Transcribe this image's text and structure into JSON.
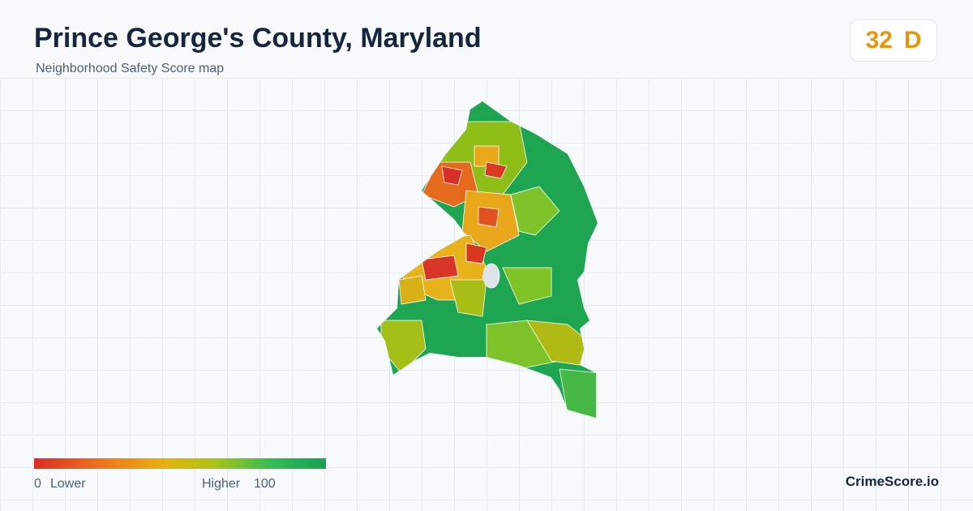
{
  "header": {
    "title": "Prince George's County, Maryland",
    "subtitle": "Neighborhood Safety Score map"
  },
  "score": {
    "value": 32,
    "grade": "D"
  },
  "legend": {
    "min": 0,
    "min_label": "Lower",
    "max_label": "Higher",
    "max": 100
  },
  "footer": {
    "brand": "CrimeScore.io"
  }
}
